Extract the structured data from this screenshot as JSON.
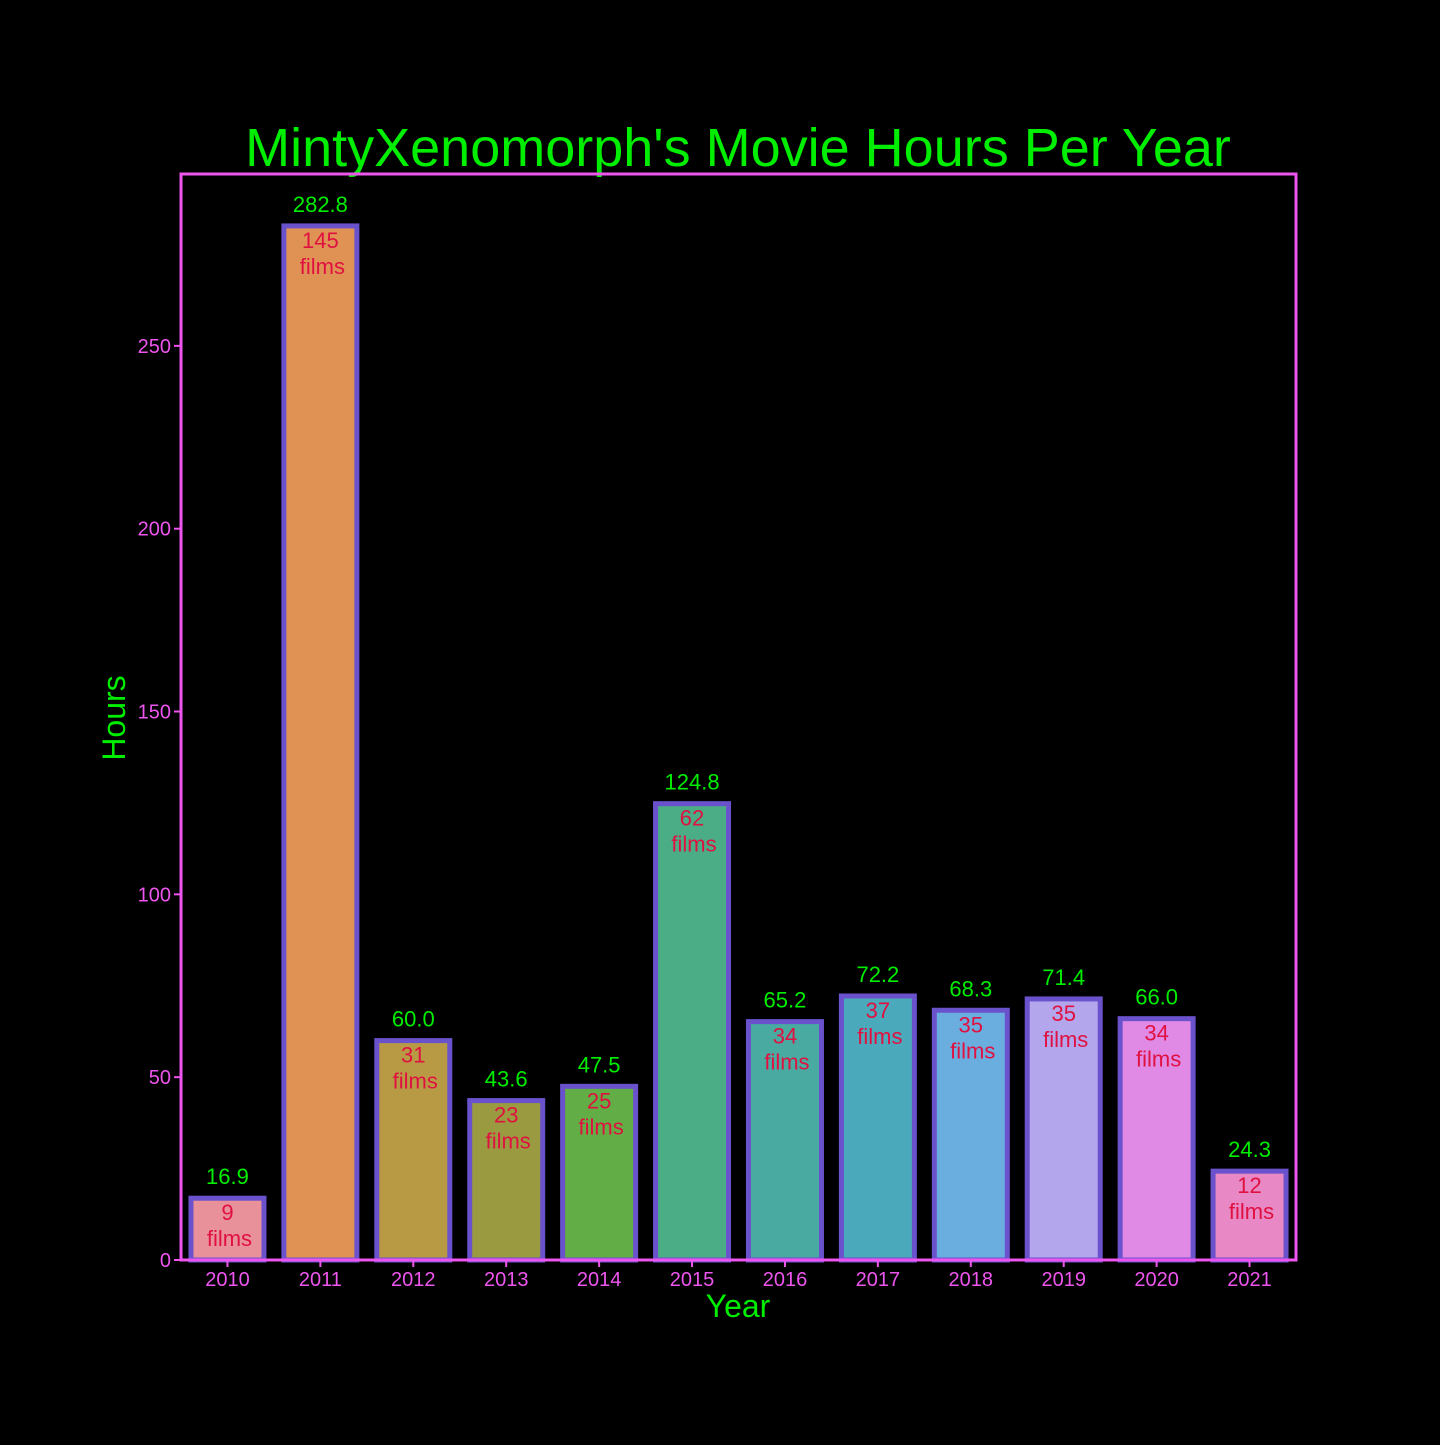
{
  "chart_data": {
    "type": "bar",
    "title": "MintyXenomorph's Movie Hours Per Year",
    "xlabel": "Year",
    "ylabel": "Hours",
    "categories": [
      "2010",
      "2011",
      "2012",
      "2013",
      "2014",
      "2015",
      "2016",
      "2017",
      "2018",
      "2019",
      "2020",
      "2021"
    ],
    "values": [
      16.9,
      282.8,
      60.0,
      43.6,
      47.5,
      124.8,
      65.2,
      72.2,
      68.3,
      71.4,
      66.0,
      24.3
    ],
    "value_labels": [
      "16.9",
      "282.8",
      "60.0",
      "43.6",
      "47.5",
      "124.8",
      "65.2",
      "72.2",
      "68.3",
      "71.4",
      "66.0",
      "24.3"
    ],
    "film_counts": [
      "9",
      "145",
      "31",
      "23",
      "25",
      "62",
      "34",
      "37",
      "35",
      "35",
      "34",
      "12"
    ],
    "count_unit": "films",
    "yticks": [
      0,
      50,
      100,
      150,
      200,
      250
    ],
    "ylim": [
      0,
      297
    ],
    "grid": false,
    "legend": "none",
    "bar_colors": [
      "#e8919a",
      "#e09255",
      "#b89a45",
      "#9a9a40",
      "#62ad45",
      "#4aad86",
      "#48aaa0",
      "#4aa9bb",
      "#6aaee0",
      "#b3a6ec",
      "#e08ae6",
      "#e888c4"
    ],
    "colors": {
      "background": "#000000",
      "title": "#00ee00",
      "axis_label": "#00ee00",
      "tick_label": "#ee55ee",
      "frame": "#ee55ee",
      "bar_edge": "#6a52cc",
      "value_label": "#00ee00",
      "count_label": "#e01040"
    }
  }
}
